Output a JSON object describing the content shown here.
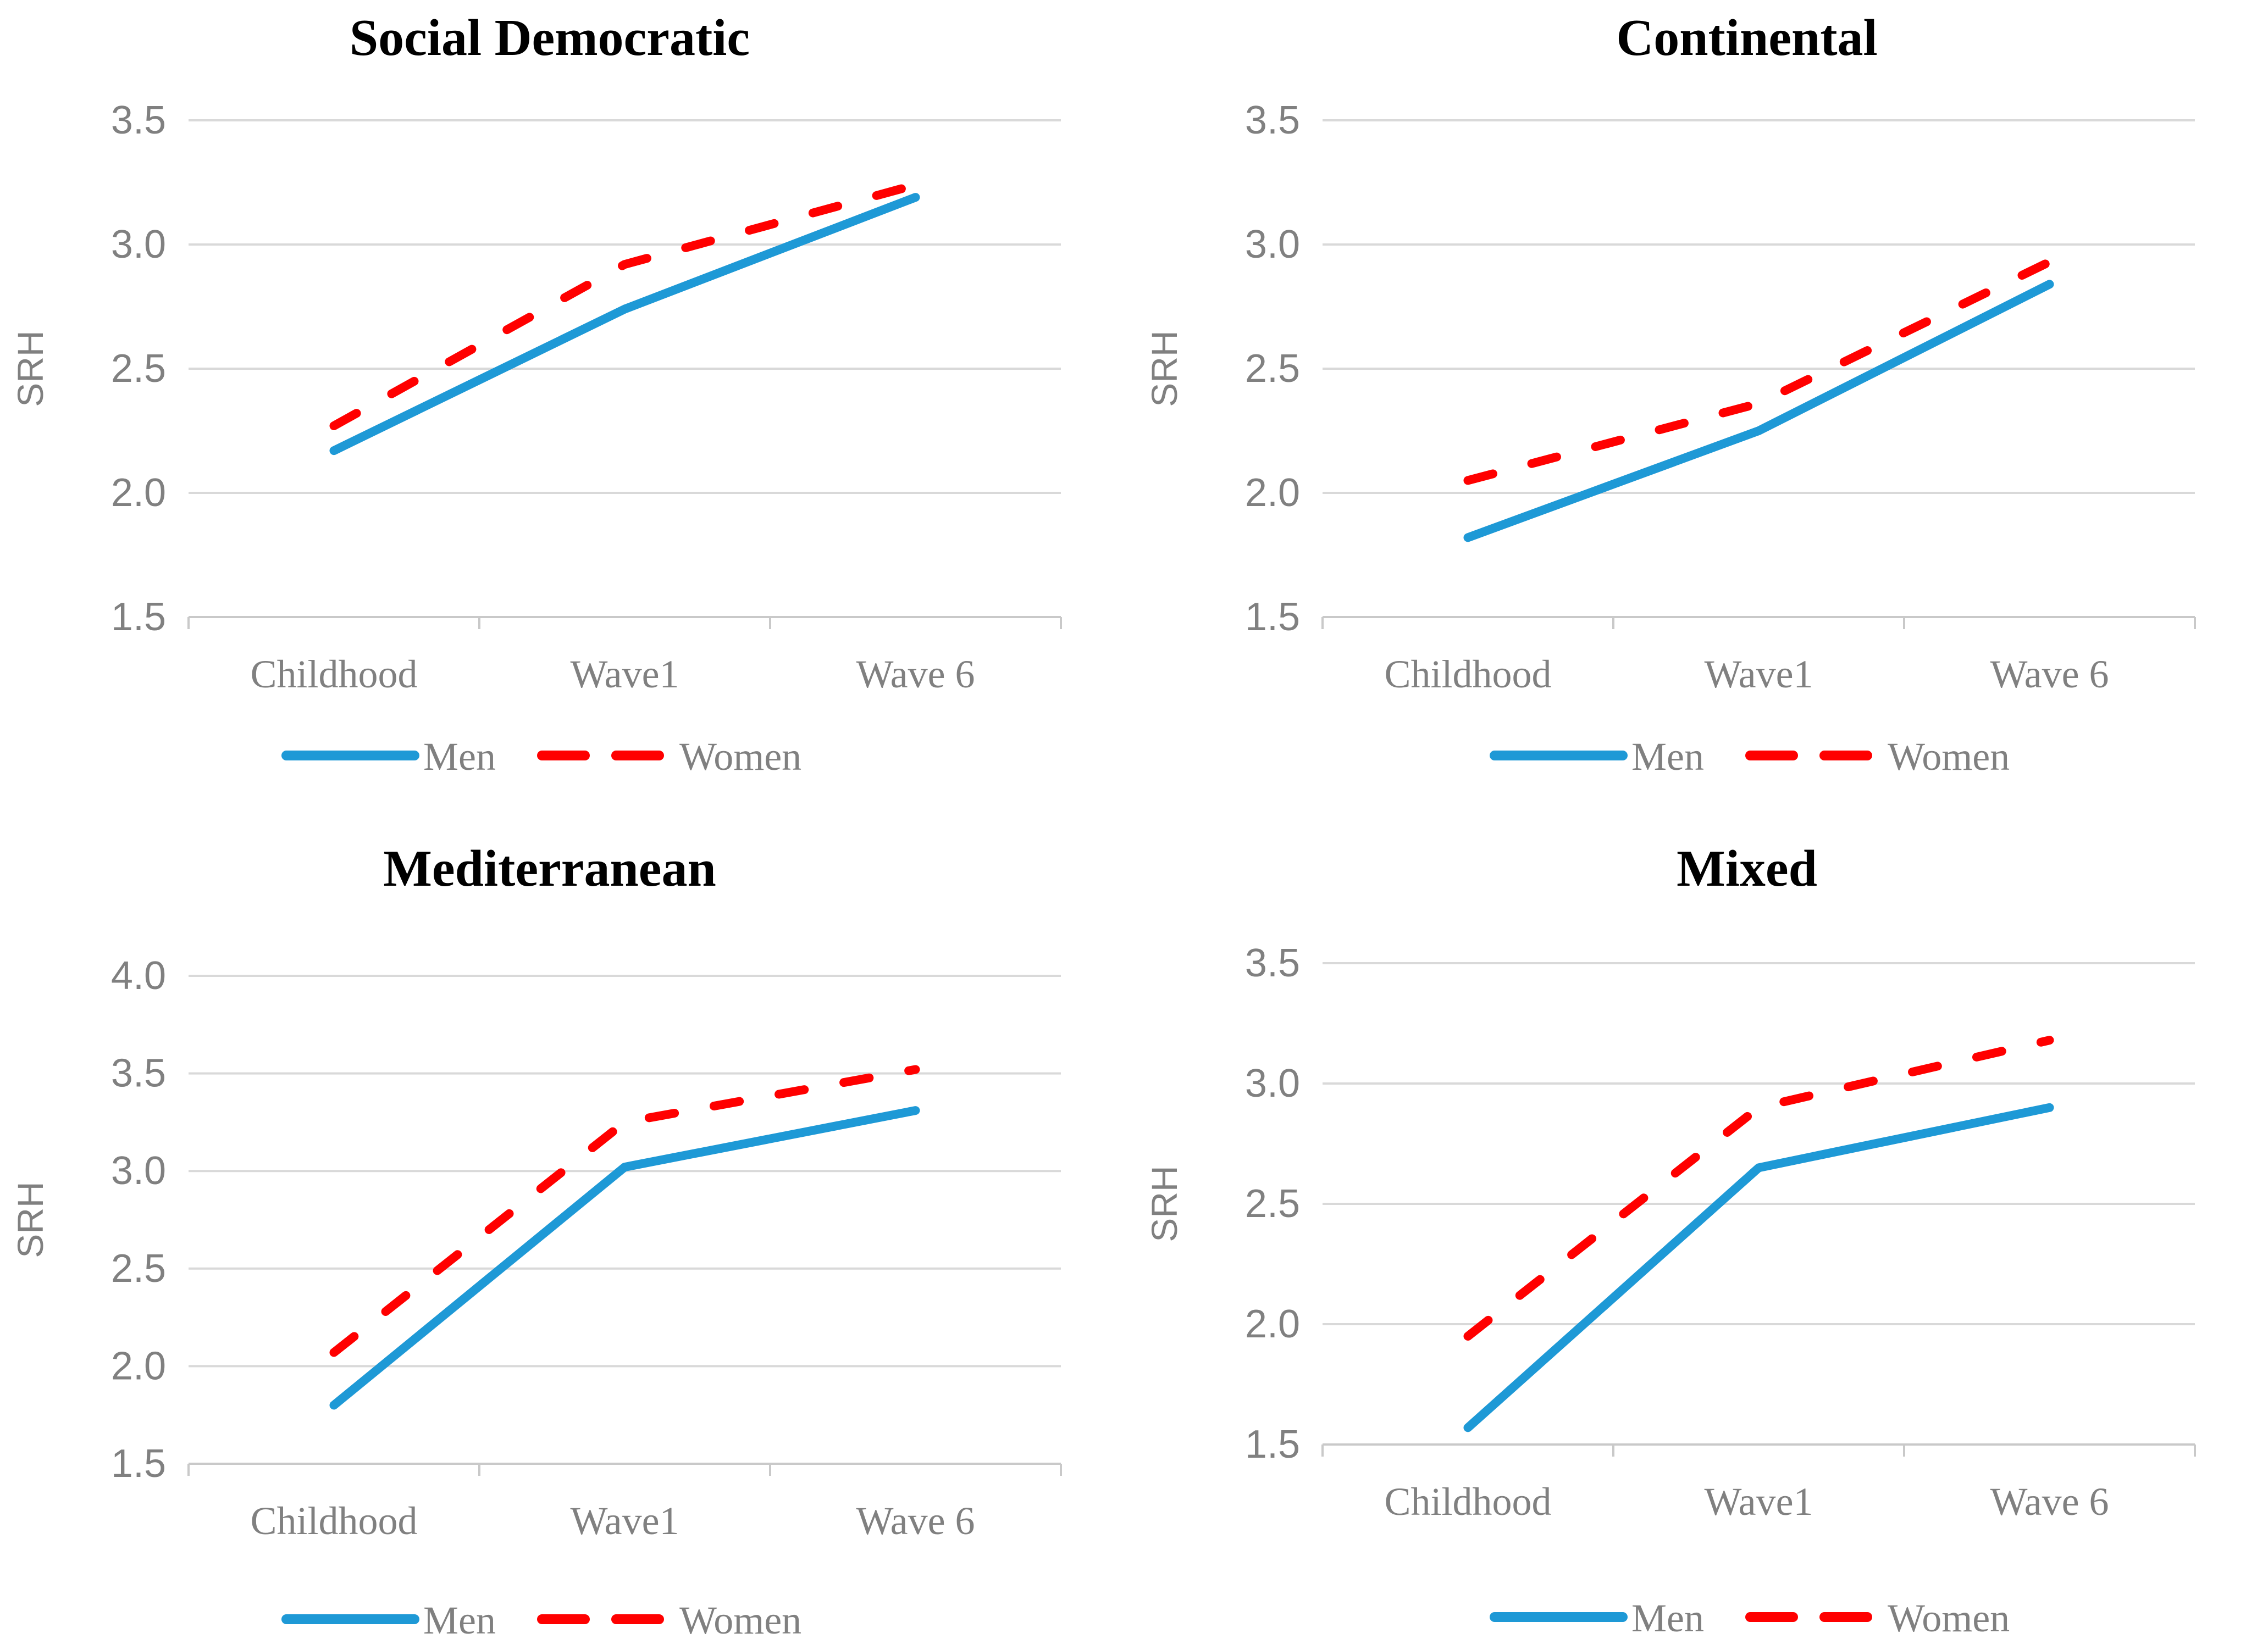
{
  "figure": {
    "description": "Four line charts of self-rated health (SRH) trajectories by welfare regime",
    "background": "#FFFFFF"
  },
  "colors": {
    "men_line": "#1E99D6",
    "women_line": "#FF0000",
    "gridline": "#D9D9D9",
    "axis_line": "#C9C9C9",
    "tick_text": "#808080",
    "category_text": "#808080",
    "legend_text": "#808080",
    "title_text": "#000000"
  },
  "chart_data": [
    {
      "type": "line",
      "title": "Social Democratic",
      "ylabel": "SRH",
      "categories": [
        "Childhood",
        "Wave1",
        "Wave 6"
      ],
      "ylim": [
        1.5,
        3.5
      ],
      "yticks": [
        "3.5",
        "3.0",
        "2.5",
        "2.0",
        "1.5"
      ],
      "grid": true,
      "legend_position": "bottom",
      "series": [
        {
          "name": "Men",
          "style": "solid",
          "color": "#1E99D6",
          "values": [
            2.17,
            2.74,
            3.19
          ]
        },
        {
          "name": "Women",
          "style": "dashed",
          "color": "#FF0000",
          "values": [
            2.27,
            2.92,
            3.24
          ]
        }
      ]
    },
    {
      "type": "line",
      "title": "Continental",
      "ylabel": "SRH",
      "categories": [
        "Childhood",
        "Wave1",
        "Wave 6"
      ],
      "ylim": [
        1.5,
        3.5
      ],
      "yticks": [
        "3.5",
        "3.0",
        "2.5",
        "2.0",
        "1.5"
      ],
      "grid": true,
      "legend_position": "bottom",
      "series": [
        {
          "name": "Men",
          "style": "solid",
          "color": "#1E99D6",
          "values": [
            1.82,
            2.25,
            2.84
          ]
        },
        {
          "name": "Women",
          "style": "dashed",
          "color": "#FF0000",
          "values": [
            2.05,
            2.36,
            2.93
          ]
        }
      ]
    },
    {
      "type": "line",
      "title": "Mediterranean",
      "ylabel": "SRH",
      "categories": [
        "Childhood",
        "Wave1",
        "Wave 6"
      ],
      "ylim": [
        1.5,
        4.0
      ],
      "yticks": [
        "4.0",
        "3.5",
        "3.0",
        "2.5",
        "2.0",
        "1.5"
      ],
      "grid": true,
      "legend_position": "bottom",
      "series": [
        {
          "name": "Men",
          "style": "solid",
          "color": "#1E99D6",
          "values": [
            1.8,
            3.02,
            3.31
          ]
        },
        {
          "name": "Women",
          "style": "dashed",
          "color": "#FF0000",
          "values": [
            2.07,
            3.25,
            3.52
          ]
        }
      ]
    },
    {
      "type": "line",
      "title": "Mixed",
      "ylabel": "SRH",
      "categories": [
        "Childhood",
        "Wave1",
        "Wave 6"
      ],
      "ylim": [
        1.5,
        3.5
      ],
      "yticks": [
        "3.5",
        "3.0",
        "2.5",
        "2.0",
        "1.5"
      ],
      "grid": true,
      "legend_position": "bottom",
      "series": [
        {
          "name": "Men",
          "style": "solid",
          "color": "#1E99D6",
          "values": [
            1.57,
            2.65,
            2.9
          ]
        },
        {
          "name": "Women",
          "style": "dashed",
          "color": "#FF0000",
          "values": [
            1.95,
            2.9,
            3.18
          ]
        }
      ]
    }
  ]
}
